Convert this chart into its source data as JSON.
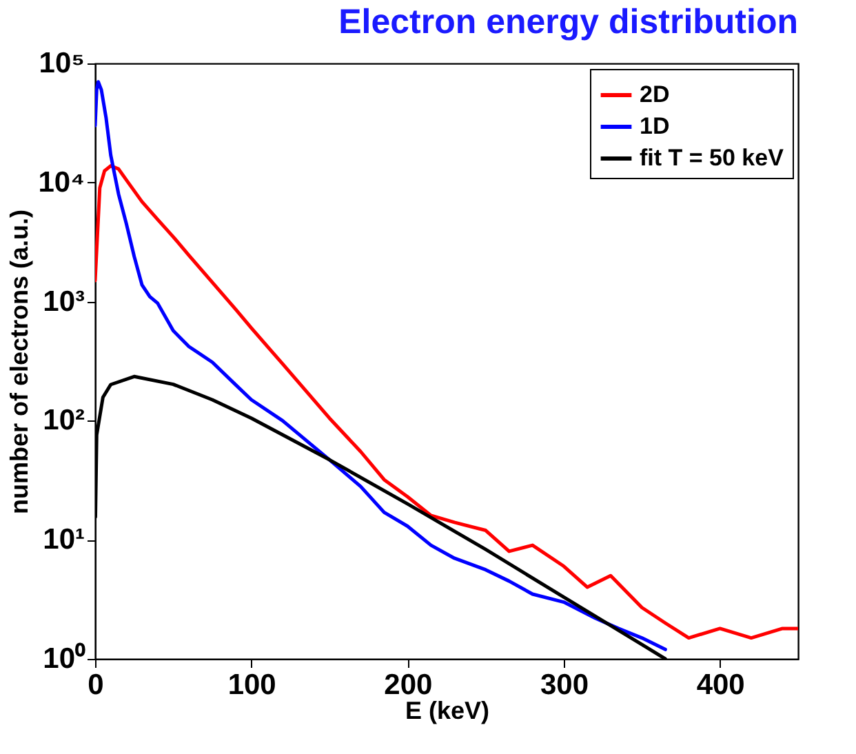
{
  "chart_data": {
    "type": "line",
    "title": "Electron energy distribution",
    "xlabel": "E (keV)",
    "ylabel": "number of electrons (a.u.)",
    "log": "y",
    "xlim": [
      0,
      450
    ],
    "ylim": [
      1,
      100000
    ],
    "xticks": [
      0,
      100,
      200,
      300,
      400
    ],
    "yticks": [
      {
        "value": 1,
        "label": "10⁰"
      },
      {
        "value": 10,
        "label": "10¹"
      },
      {
        "value": 100,
        "label": "10²"
      },
      {
        "value": 1000,
        "label": "10³"
      },
      {
        "value": 10000,
        "label": "10⁴"
      },
      {
        "value": 100000,
        "label": "10⁵"
      }
    ],
    "legend": "top right",
    "grid": false,
    "line_style": "solid",
    "marker": "none",
    "series": [
      {
        "name": "2D",
        "color": "#ff0000",
        "x": [
          0,
          3,
          6,
          10,
          15,
          20,
          30,
          40,
          50,
          60,
          75,
          90,
          100,
          120,
          150,
          170,
          185,
          200,
          215,
          230,
          250,
          265,
          280,
          300,
          315,
          330,
          350,
          365,
          380,
          400,
          420,
          440,
          450
        ],
        "values": [
          1500,
          9000,
          12500,
          13800,
          13000,
          10500,
          6900,
          4900,
          3500,
          2450,
          1450,
          860,
          600,
          300,
          105,
          55,
          32,
          23,
          16,
          14,
          12,
          8,
          9,
          6,
          4,
          5,
          2.7,
          2,
          1.5,
          1.8,
          1.5,
          1.8,
          1.8
        ]
      },
      {
        "name": "1D",
        "color": "#0000ff",
        "x": [
          0,
          1,
          2,
          4,
          7,
          10,
          15,
          20,
          25,
          30,
          35,
          40,
          50,
          60,
          75,
          90,
          100,
          120,
          150,
          170,
          185,
          200,
          215,
          230,
          250,
          265,
          280,
          300,
          320,
          335,
          350,
          365
        ],
        "values": [
          30000,
          60000,
          70000,
          60000,
          35000,
          17000,
          8000,
          4500,
          2400,
          1380,
          1100,
          970,
          570,
          420,
          310,
          200,
          150,
          100,
          47,
          28,
          17,
          13,
          9,
          7,
          5.6,
          4.5,
          3.5,
          3,
          2.2,
          1.8,
          1.5,
          1.2
        ]
      },
      {
        "name": "fit T = 50 keV",
        "color": "#000000",
        "x": [
          0.2,
          1,
          5,
          10,
          25,
          50,
          75,
          100,
          150,
          200,
          250,
          300,
          350,
          365
        ],
        "values": [
          15.5,
          76,
          157,
          201,
          235,
          202,
          150,
          105,
          47,
          20,
          8.3,
          3.3,
          1.32,
          1.0
        ]
      }
    ]
  }
}
